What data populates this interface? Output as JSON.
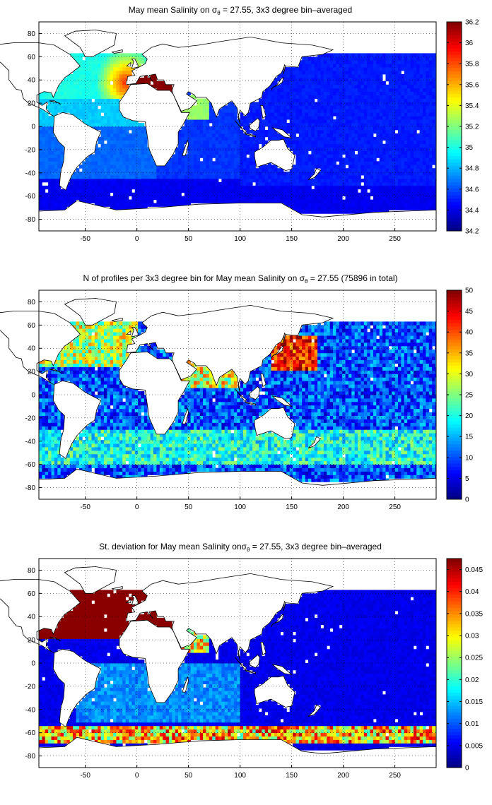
{
  "panels": [
    {
      "title_pre": "May mean Salinity on ",
      "title_sym": "σ",
      "title_sub": "θ",
      "title_post": " = 27.55, 3x3 degree bin–averaged",
      "colorbar_ticks": [
        "34.2",
        "34.4",
        "34.6",
        "34.8",
        "35",
        "35.2",
        "35.4",
        "35.6",
        "35.8",
        "36",
        "36.2"
      ]
    },
    {
      "title_pre": "N of profiles per 3x3 degree bin for May mean Salinity on ",
      "title_sym": "σ",
      "title_sub": "θ",
      "title_post": " = 27.55 (75896 in total)",
      "colorbar_ticks": [
        "0",
        "5",
        "10",
        "15",
        "20",
        "25",
        "30",
        "35",
        "40",
        "45",
        "50"
      ]
    },
    {
      "title_pre": "St. deviation for May mean Salinity on",
      "title_sym": "σ",
      "title_sub": "θ",
      "title_post": " = 27.55, 3x3 degree bin–averaged",
      "colorbar_ticks": [
        "0",
        "0.005",
        "0.01",
        "0.015",
        "0.02",
        "0.025",
        "0.03",
        "0.035",
        "0.04",
        "0.045"
      ]
    }
  ],
  "chart_data": [
    {
      "type": "heatmap",
      "title": "May mean Salinity on σθ = 27.55, 3x3 degree bin–averaged",
      "xlim": [
        -95,
        290
      ],
      "ylim": [
        -90,
        90
      ],
      "xticks": [
        -50,
        0,
        50,
        100,
        150,
        200,
        250
      ],
      "yticks": [
        -80,
        -60,
        -40,
        -20,
        0,
        20,
        40,
        60,
        80
      ],
      "grid": true,
      "colorbar_range": [
        34.2,
        36.2
      ],
      "colormap": "jet",
      "description_values": {
        "southern_ocean": 34.4,
        "indo_pacific": 34.5,
        "south_atlantic": 34.6,
        "north_atlantic_subpolar": 35.0,
        "arabian_sea": 35.2,
        "mediterranean_outflow": 35.8,
        "mediterranean_sea": 36.2
      }
    },
    {
      "type": "heatmap",
      "title": "N of profiles per 3x3 degree bin for May mean Salinity on σθ = 27.55 (75896 in total)",
      "xlim": [
        -95,
        290
      ],
      "ylim": [
        -90,
        90
      ],
      "xticks": [
        -50,
        0,
        50,
        100,
        150,
        200,
        250
      ],
      "yticks": [
        -80,
        -60,
        -40,
        -20,
        0,
        20,
        40,
        60,
        80
      ],
      "grid": true,
      "colorbar_range": [
        0,
        50
      ],
      "colormap": "jet",
      "total_profiles": 75896,
      "description_values": {
        "northwest_pacific": 45,
        "north_atlantic": 35,
        "southern_ocean_band": 25,
        "tropical_pacific": 15,
        "south_pacific": 18
      }
    },
    {
      "type": "heatmap",
      "title": "St. deviation for May mean Salinity onσθ = 27.55, 3x3 degree bin–averaged",
      "xlim": [
        -95,
        290
      ],
      "ylim": [
        -90,
        90
      ],
      "xticks": [
        -50,
        0,
        50,
        100,
        150,
        200,
        250
      ],
      "yticks": [
        -80,
        -60,
        -40,
        -20,
        0,
        20,
        40,
        60,
        80
      ],
      "grid": true,
      "colorbar_range": [
        0,
        0.0475
      ],
      "colormap": "jet",
      "description_values": {
        "pacific": 0.004,
        "south_atlantic": 0.012,
        "southern_ocean_front": 0.04,
        "north_atlantic": 0.047,
        "mediterranean": 0.047
      }
    }
  ],
  "colors": {
    "land": "#ffffff",
    "coast": "#000000",
    "jet_low": "#00008f",
    "jet_high": "#800000"
  }
}
